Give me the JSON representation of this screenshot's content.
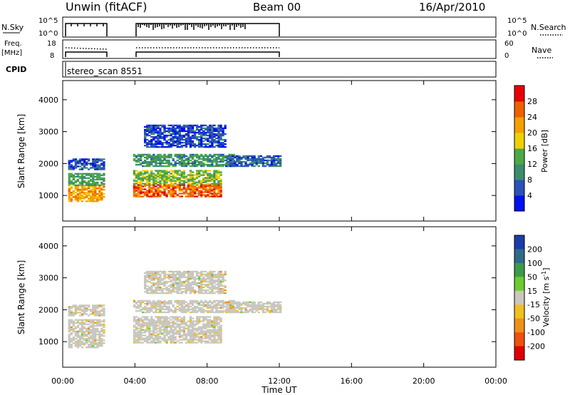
{
  "header": {
    "station": "Unwin (fitACF)",
    "beam": "Beam 00",
    "date": "16/Apr/2010"
  },
  "panels": {
    "nsky": {
      "left_label": "N.Sky",
      "left_ticks": [
        "10^5",
        "10^0"
      ],
      "right_label": "N.Search",
      "right_ticks": [
        "10^5",
        "10^0"
      ]
    },
    "freq": {
      "left_label_1": "Freq.",
      "left_label_2": "[MHz]",
      "left_ticks": [
        "18",
        "8"
      ],
      "right_label": "Nave",
      "right_ticks": [
        "60",
        "0"
      ]
    },
    "cpid": {
      "label": "CPID",
      "value": "stereo_scan 8551"
    }
  },
  "colors": {
    "power_scale": [
      "#0010f0",
      "#2a52b8",
      "#3c8c6e",
      "#4caa46",
      "#f0d000",
      "#f4a000",
      "#f06000",
      "#e80000"
    ],
    "velocity_scale": [
      "#1c3ca8",
      "#2e6a8a",
      "#3d9a4a",
      "#6ccc30",
      "#c8c8c0",
      "#f0c020",
      "#f09018",
      "#f05010",
      "#e00000"
    ]
  },
  "chart_data": [
    {
      "type": "heatmap",
      "title": "Power",
      "xlabel": "Time UT",
      "ylabel": "Slant Range [km]",
      "x_ticks": [
        "00:00",
        "04:00",
        "08:00",
        "12:00",
        "16:00",
        "20:00",
        "00:00"
      ],
      "y_ticks": [
        "1000",
        "2000",
        "3000",
        "4000"
      ],
      "ylim": [
        200,
        4600
      ],
      "xlim_hours": [
        0,
        24
      ],
      "colorbar": {
        "label": "Power [dB]",
        "ticks": [
          "4",
          "8",
          "12",
          "16",
          "20",
          "24",
          "28"
        ],
        "range": [
          0,
          32
        ]
      },
      "observation_windows_hours": [
        [
          0.3,
          2.3
        ],
        [
          3.9,
          12.0
        ]
      ],
      "bands": [
        {
          "t_start": 0.3,
          "t_end": 2.3,
          "r_start": 800,
          "r_end": 1300,
          "value": 22
        },
        {
          "t_start": 0.3,
          "t_end": 2.3,
          "r_start": 1300,
          "r_end": 1700,
          "value": 12
        },
        {
          "t_start": 0.3,
          "t_end": 2.3,
          "r_start": 1800,
          "r_end": 2150,
          "value": 6
        },
        {
          "t_start": 3.9,
          "t_end": 8.8,
          "r_start": 950,
          "r_end": 1350,
          "value": 26
        },
        {
          "t_start": 3.9,
          "t_end": 8.8,
          "r_start": 1350,
          "r_end": 1800,
          "value": 15
        },
        {
          "t_start": 3.9,
          "t_end": 9.5,
          "r_start": 1900,
          "r_end": 2300,
          "value": 11
        },
        {
          "t_start": 4.5,
          "t_end": 9.0,
          "r_start": 2500,
          "r_end": 3200,
          "value": 5
        },
        {
          "t_start": 9.0,
          "t_end": 12.0,
          "r_start": 1900,
          "r_end": 2250,
          "value": 7
        }
      ]
    },
    {
      "type": "heatmap",
      "title": "Velocity",
      "xlabel": "Time UT",
      "ylabel": "Slant Range [km]",
      "x_ticks": [
        "00:00",
        "04:00",
        "08:00",
        "12:00",
        "16:00",
        "20:00",
        "00:00"
      ],
      "y_ticks": [
        "1000",
        "2000",
        "3000",
        "4000"
      ],
      "ylim": [
        200,
        4600
      ],
      "xlim_hours": [
        0,
        24
      ],
      "colorbar": {
        "label": "Velocity [m s^-1]",
        "ticks": [
          "200",
          "100",
          "50",
          "15",
          "-15",
          "-50",
          "-100",
          "-200"
        ]
      },
      "dominant_class": "-15 to 15 (grey, ground scatter)",
      "observation_windows_hours": [
        [
          0.3,
          2.3
        ],
        [
          3.9,
          12.0
        ]
      ]
    }
  ]
}
